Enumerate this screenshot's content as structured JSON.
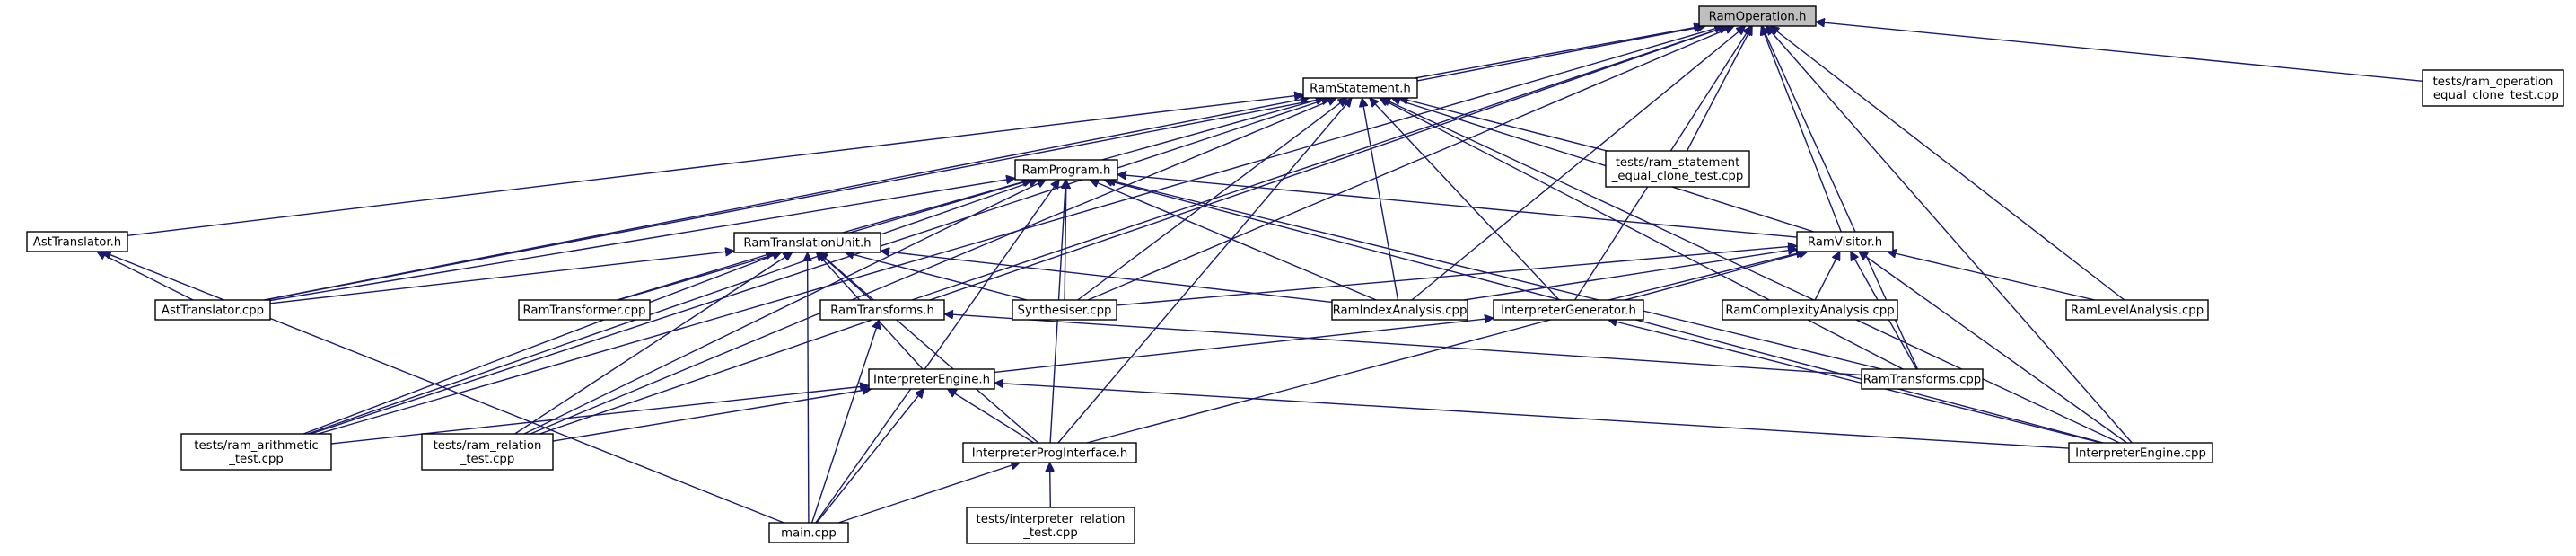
{
  "nodes": [
    {
      "id": "ram_operation_h",
      "lines": [
        "RamOperation.h"
      ],
      "focus": true
    },
    {
      "id": "ram_statement_h",
      "lines": [
        "RamStatement.h"
      ]
    },
    {
      "id": "tests_ram_operation_equal_clone_test_cpp",
      "lines": [
        "tests/ram_operation",
        "_equal_clone_test.cpp"
      ]
    },
    {
      "id": "ram_program_h",
      "lines": [
        "RamProgram.h"
      ]
    },
    {
      "id": "tests_ram_statement_equal_clone_test_cpp",
      "lines": [
        "tests/ram_statement",
        "_equal_clone_test.cpp"
      ]
    },
    {
      "id": "ast_translator_h",
      "lines": [
        "AstTranslator.h"
      ]
    },
    {
      "id": "ram_translation_unit_h",
      "lines": [
        "RamTranslationUnit.h"
      ]
    },
    {
      "id": "ram_visitor_h",
      "lines": [
        "RamVisitor.h"
      ]
    },
    {
      "id": "ast_translator_cpp",
      "lines": [
        "AstTranslator.cpp"
      ]
    },
    {
      "id": "ram_transformer_cpp",
      "lines": [
        "RamTransformer.cpp"
      ]
    },
    {
      "id": "ram_transforms_h",
      "lines": [
        "RamTransforms.h"
      ]
    },
    {
      "id": "synthesiser_cpp",
      "lines": [
        "Synthesiser.cpp"
      ]
    },
    {
      "id": "ram_index_analysis_cpp",
      "lines": [
        "RamIndexAnalysis.cpp"
      ]
    },
    {
      "id": "interpreter_generator_h",
      "lines": [
        "InterpreterGenerator.h"
      ]
    },
    {
      "id": "ram_complexity_analysis_cpp",
      "lines": [
        "RamComplexityAnalysis.cpp"
      ]
    },
    {
      "id": "ram_level_analysis_cpp",
      "lines": [
        "RamLevelAnalysis.cpp"
      ]
    },
    {
      "id": "interpreter_engine_h",
      "lines": [
        "InterpreterEngine.h"
      ]
    },
    {
      "id": "ram_transforms_cpp",
      "lines": [
        "RamTransforms.cpp"
      ]
    },
    {
      "id": "tests_ram_arithmetic_test_cpp",
      "lines": [
        "tests/ram_arithmetic",
        "_test.cpp"
      ]
    },
    {
      "id": "tests_ram_relation_test_cpp",
      "lines": [
        "tests/ram_relation",
        "_test.cpp"
      ]
    },
    {
      "id": "interpreter_prog_interface_h",
      "lines": [
        "InterpreterProgInterface.h"
      ]
    },
    {
      "id": "interpreter_engine_cpp",
      "lines": [
        "InterpreterEngine.cpp"
      ]
    },
    {
      "id": "main_cpp",
      "lines": [
        "main.cpp"
      ]
    },
    {
      "id": "tests_interpreter_relation_test_cpp",
      "lines": [
        "tests/interpreter_relation",
        "_test.cpp"
      ]
    }
  ],
  "edges": [
    [
      "ram_statement_h",
      "ram_operation_h"
    ],
    [
      "tests_ram_operation_equal_clone_test_cpp",
      "ram_operation_h"
    ],
    [
      "tests_ram_statement_equal_clone_test_cpp",
      "ram_operation_h"
    ],
    [
      "ram_visitor_h",
      "ram_operation_h"
    ],
    [
      "ram_level_analysis_cpp",
      "ram_operation_h"
    ],
    [
      "ram_transforms_cpp",
      "ram_operation_h"
    ],
    [
      "interpreter_engine_cpp",
      "ram_operation_h"
    ],
    [
      "ram_index_analysis_cpp",
      "ram_operation_h"
    ],
    [
      "interpreter_generator_h",
      "ram_operation_h"
    ],
    [
      "synthesiser_cpp",
      "ram_operation_h"
    ],
    [
      "ram_transforms_h",
      "ram_operation_h"
    ],
    [
      "ast_translator_cpp",
      "ram_operation_h"
    ],
    [
      "tests_ram_arithmetic_test_cpp",
      "ram_operation_h"
    ],
    [
      "tests_ram_relation_test_cpp",
      "ram_operation_h"
    ],
    [
      "ram_program_h",
      "ram_statement_h"
    ],
    [
      "tests_ram_statement_equal_clone_test_cpp",
      "ram_statement_h"
    ],
    [
      "ast_translator_h",
      "ram_statement_h"
    ],
    [
      "ram_visitor_h",
      "ram_statement_h"
    ],
    [
      "ast_translator_cpp",
      "ram_statement_h"
    ],
    [
      "synthesiser_cpp",
      "ram_statement_h"
    ],
    [
      "ram_index_analysis_cpp",
      "ram_statement_h"
    ],
    [
      "interpreter_generator_h",
      "ram_statement_h"
    ],
    [
      "ram_transforms_cpp",
      "ram_statement_h"
    ],
    [
      "interpreter_engine_cpp",
      "ram_statement_h"
    ],
    [
      "tests_ram_arithmetic_test_cpp",
      "ram_statement_h"
    ],
    [
      "tests_ram_relation_test_cpp",
      "ram_statement_h"
    ],
    [
      "interpreter_prog_interface_h",
      "ram_statement_h"
    ],
    [
      "ram_translation_unit_h",
      "ram_program_h"
    ],
    [
      "ram_visitor_h",
      "ram_program_h"
    ],
    [
      "ast_translator_cpp",
      "ram_program_h"
    ],
    [
      "ram_transformer_cpp",
      "ram_program_h"
    ],
    [
      "synthesiser_cpp",
      "ram_program_h"
    ],
    [
      "ram_index_analysis_cpp",
      "ram_program_h"
    ],
    [
      "ram_transforms_cpp",
      "ram_program_h"
    ],
    [
      "interpreter_engine_cpp",
      "ram_program_h"
    ],
    [
      "tests_ram_arithmetic_test_cpp",
      "ram_program_h"
    ],
    [
      "tests_ram_relation_test_cpp",
      "ram_program_h"
    ],
    [
      "interpreter_prog_interface_h",
      "ram_program_h"
    ],
    [
      "main_cpp",
      "ram_program_h"
    ],
    [
      "ast_translator_cpp",
      "ast_translator_h"
    ],
    [
      "main_cpp",
      "ast_translator_h"
    ],
    [
      "ast_translator_cpp",
      "ram_translation_unit_h"
    ],
    [
      "ram_transformer_cpp",
      "ram_translation_unit_h"
    ],
    [
      "ram_transforms_h",
      "ram_translation_unit_h"
    ],
    [
      "synthesiser_cpp",
      "ram_translation_unit_h"
    ],
    [
      "ram_index_analysis_cpp",
      "ram_translation_unit_h"
    ],
    [
      "interpreter_engine_h",
      "ram_translation_unit_h"
    ],
    [
      "interpreter_prog_interface_h",
      "ram_translation_unit_h"
    ],
    [
      "tests_ram_arithmetic_test_cpp",
      "ram_translation_unit_h"
    ],
    [
      "tests_ram_relation_test_cpp",
      "ram_translation_unit_h"
    ],
    [
      "main_cpp",
      "ram_translation_unit_h"
    ],
    [
      "synthesiser_cpp",
      "ram_visitor_h"
    ],
    [
      "ram_index_analysis_cpp",
      "ram_visitor_h"
    ],
    [
      "interpreter_generator_h",
      "ram_visitor_h"
    ],
    [
      "ram_complexity_analysis_cpp",
      "ram_visitor_h"
    ],
    [
      "ram_level_analysis_cpp",
      "ram_visitor_h"
    ],
    [
      "ram_transforms_cpp",
      "ram_visitor_h"
    ],
    [
      "interpreter_engine_cpp",
      "ram_visitor_h"
    ],
    [
      "interpreter_prog_interface_h",
      "ram_visitor_h"
    ],
    [
      "ram_transforms_cpp",
      "ram_transforms_h"
    ],
    [
      "main_cpp",
      "ram_transforms_h"
    ],
    [
      "interpreter_engine_h",
      "interpreter_generator_h"
    ],
    [
      "interpreter_engine_cpp",
      "interpreter_generator_h"
    ],
    [
      "interpreter_prog_interface_h",
      "interpreter_engine_h"
    ],
    [
      "interpreter_engine_cpp",
      "interpreter_engine_h"
    ],
    [
      "tests_ram_arithmetic_test_cpp",
      "interpreter_engine_h"
    ],
    [
      "tests_ram_relation_test_cpp",
      "interpreter_engine_h"
    ],
    [
      "main_cpp",
      "interpreter_engine_h"
    ],
    [
      "main_cpp",
      "interpreter_prog_interface_h"
    ],
    [
      "tests_interpreter_relation_test_cpp",
      "interpreter_prog_interface_h"
    ]
  ]
}
